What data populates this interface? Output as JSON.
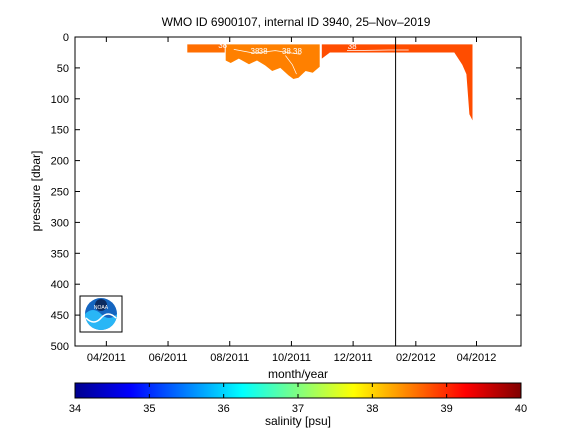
{
  "chart_data": {
    "type": "heatmap",
    "title": "WMO ID 6900107, internal ID 3940, 25–Nov–2019",
    "xlabel": "month/year",
    "ylabel": "pressure [dbar]",
    "x_tick_labels": [
      "04/2011",
      "06/2011",
      "08/2011",
      "10/2011",
      "12/2011",
      "02/2012",
      "04/2012"
    ],
    "x_ticks": [
      "2011-04-01",
      "2011-06-01",
      "2011-08-01",
      "2011-10-01",
      "2011-12-01",
      "2012-02-01",
      "2012-04-01"
    ],
    "xlim": [
      "2011-03-01",
      "2012-05-15"
    ],
    "y_ticks": [
      0,
      50,
      100,
      150,
      200,
      250,
      300,
      350,
      400,
      450,
      500
    ],
    "ylim": [
      0,
      500
    ],
    "y_reversed": true,
    "colorbar": {
      "label": "salinity [psu]",
      "ticks": [
        34,
        35,
        36,
        37,
        38,
        39,
        40
      ],
      "range": [
        34,
        40
      ],
      "colormap": "jet"
    },
    "vertical_line_date": "2012-01-12",
    "contour_labels": [
      {
        "text": "38",
        "date": "2011-07-25",
        "pressure": 14
      },
      {
        "text": "38",
        "date": "2011-08-26",
        "pressure": 24
      },
      {
        "text": "38",
        "date": "2011-09-03",
        "pressure": 24
      },
      {
        "text": "38",
        "date": "2011-09-26",
        "pressure": 24
      },
      {
        "text": "38",
        "date": "2011-10-07",
        "pressure": 24
      },
      {
        "text": "38",
        "date": "2011-11-30",
        "pressure": 16
      }
    ],
    "sections": [
      {
        "start": "2011-06-20",
        "end": "2011-07-27",
        "salinity": 38.6,
        "profile": [
          [
            "2011-06-20",
            12,
            25
          ],
          [
            "2011-07-27",
            12,
            25
          ]
        ]
      },
      {
        "start": "2011-07-27",
        "end": "2011-10-30",
        "salinity": 38.5,
        "profile": [
          [
            "2011-07-28",
            12,
            38
          ],
          [
            "2011-08-02",
            12,
            42
          ],
          [
            "2011-08-10",
            12,
            35
          ],
          [
            "2011-08-20",
            12,
            44
          ],
          [
            "2011-08-28",
            12,
            38
          ],
          [
            "2011-09-05",
            12,
            46
          ],
          [
            "2011-09-12",
            12,
            55
          ],
          [
            "2011-09-20",
            12,
            50
          ],
          [
            "2011-09-28",
            12,
            62
          ],
          [
            "2011-10-03",
            12,
            68
          ],
          [
            "2011-10-08",
            12,
            66
          ],
          [
            "2011-10-15",
            12,
            55
          ],
          [
            "2011-10-22",
            12,
            58
          ],
          [
            "2011-10-29",
            12,
            48
          ]
        ]
      },
      {
        "start": "2011-10-30",
        "end": "2012-03-30",
        "salinity": 38.8,
        "profile": [
          [
            "2011-10-31",
            12,
            35
          ],
          [
            "2011-11-08",
            12,
            25
          ],
          [
            "2012-03-10",
            12,
            25
          ],
          [
            "2012-03-18",
            12,
            45
          ],
          [
            "2012-03-22",
            12,
            60
          ],
          [
            "2012-03-25",
            12,
            125
          ],
          [
            "2012-03-28",
            12,
            135
          ]
        ]
      }
    ]
  },
  "logo": {
    "text": "NOAA"
  }
}
